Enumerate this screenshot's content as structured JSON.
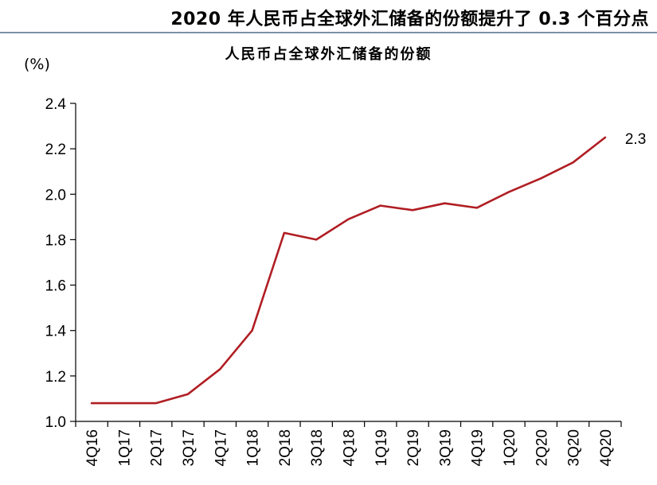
{
  "header": {
    "title": "2020 年人民币占全球外汇储备的份额提升了 0.3 个百分点"
  },
  "chart_data": {
    "type": "line",
    "title": "人民币占全球外汇储备的份额",
    "ylabel": "(%)",
    "xlabel": "",
    "ylim": [
      1.0,
      2.4
    ],
    "yticks": [
      "1.0",
      "1.2",
      "1.4",
      "1.6",
      "1.8",
      "2.0",
      "2.2",
      "2.4"
    ],
    "grid": false,
    "legend": "none",
    "categories": [
      "4Q16",
      "1Q17",
      "2Q17",
      "3Q17",
      "4Q17",
      "1Q18",
      "2Q18",
      "3Q18",
      "4Q18",
      "1Q19",
      "2Q19",
      "3Q19",
      "4Q19",
      "1Q20",
      "2Q20",
      "3Q20",
      "4Q20"
    ],
    "series": [
      {
        "color": "#b01e23",
        "values": [
          1.08,
          1.08,
          1.08,
          1.12,
          1.23,
          1.4,
          1.83,
          1.8,
          1.89,
          1.95,
          1.93,
          1.96,
          1.94,
          2.01,
          2.07,
          2.14,
          2.25
        ]
      }
    ],
    "end_label": "2.3"
  }
}
